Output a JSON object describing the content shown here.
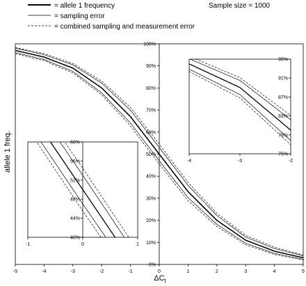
{
  "chart_data": {
    "type": "line",
    "annotation": "Sample size = 1000",
    "legend": {
      "position": "top-left",
      "entries": [
        {
          "label": "= allele 1 frequency",
          "style": "thick-solid"
        },
        {
          "label": "= sampling error",
          "style": "thin-solid"
        },
        {
          "label": "= combined sampling and measurement error",
          "style": "dashed"
        }
      ]
    },
    "xlabel": "ΔC",
    "xlabel_subscript": "t",
    "ylabel": "allele 1 freq.",
    "xlim": [
      -5,
      5
    ],
    "ylim": [
      0,
      100
    ],
    "x_ticks": [
      "-5",
      "-4",
      "-3",
      "-2",
      "-1",
      "0",
      "1",
      "2",
      "3",
      "4",
      "5"
    ],
    "y_ticks": [
      "0%",
      "10%",
      "20%",
      "30%",
      "40%",
      "50%",
      "60%",
      "70%",
      "80%",
      "90%",
      "100%"
    ],
    "grid": false,
    "series": [
      {
        "name": "allele 1 frequency",
        "x": [
          -5,
          -4,
          -3,
          -2,
          -1,
          0,
          1,
          2,
          3,
          4,
          5
        ],
        "y": [
          97,
          94,
          89,
          80,
          67,
          50,
          33,
          20,
          11,
          6,
          3
        ]
      },
      {
        "name": "sampling error",
        "x": [
          -5,
          -4,
          -3,
          -2,
          -1,
          0,
          1,
          2,
          3,
          4,
          5
        ],
        "y_lower": [
          96,
          92.9,
          87.5,
          77.8,
          64.1,
          47,
          30.3,
          18.2,
          9.6,
          5,
          2.3
        ],
        "y_upper": [
          98,
          95.1,
          90.5,
          82.2,
          69.9,
          53,
          35.8,
          22.2,
          12.4,
          7.2,
          3.9
        ]
      },
      {
        "name": "combined sampling and measurement error",
        "x": [
          -5,
          -4,
          -3,
          -2,
          -1,
          0,
          1,
          2,
          3,
          4,
          5
        ],
        "y_lower": [
          95.5,
          92.4,
          86.8,
          76.9,
          62.8,
          45.5,
          28.9,
          17.2,
          8.9,
          4.5,
          2
        ],
        "y_upper": [
          98.3,
          95.6,
          91.1,
          83.1,
          71.2,
          54.5,
          37.2,
          23.2,
          13.2,
          7.8,
          4.3
        ]
      }
    ],
    "insets": [
      {
        "name": "inset-lower-left",
        "xlim": [
          -1,
          1
        ],
        "ylim": [
          40,
          60
        ],
        "x_ticks": [
          "-1",
          "0",
          "1"
        ],
        "y_ticks": [
          "40%",
          "44%",
          "48%",
          "52%",
          "56%",
          "60%"
        ]
      },
      {
        "name": "inset-upper-right",
        "xlim": [
          -4,
          -2
        ],
        "ylim": [
          75,
          95
        ],
        "x_ticks": [
          "-4",
          "-3",
          "-2"
        ],
        "y_ticks": [
          "75%",
          "79%",
          "83%",
          "87%",
          "91%",
          "95%"
        ]
      }
    ]
  }
}
